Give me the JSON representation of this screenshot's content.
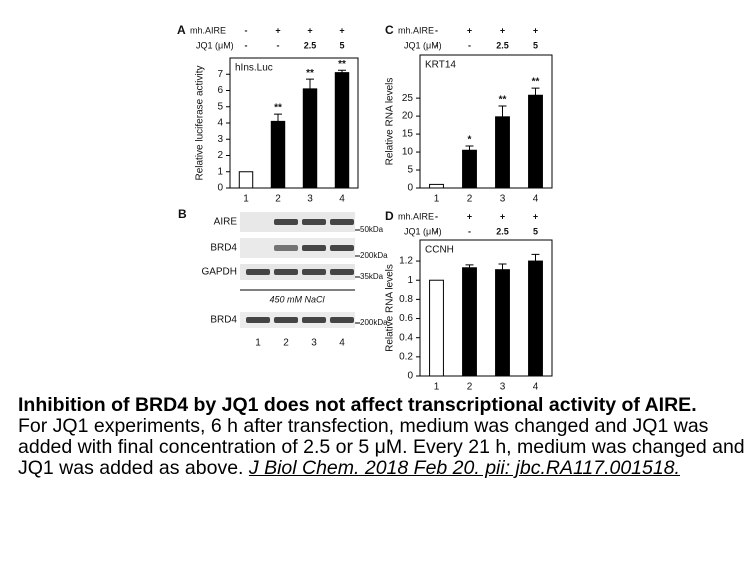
{
  "chart_data": [
    {
      "type": "bar",
      "panel": "A",
      "title": "hIns.Luc",
      "ylabel": "Relative luciferase activity",
      "conditions": [
        {
          "label": "mh.AIRE",
          "values": [
            "-",
            "+",
            "+",
            "+"
          ]
        },
        {
          "label": "JQ1 (μM)",
          "values": [
            "-",
            "-",
            "2.5",
            "5"
          ]
        }
      ],
      "categories": [
        "1",
        "2",
        "3",
        "4"
      ],
      "values": [
        1,
        4.1,
        6.1,
        7.1
      ],
      "errors": [
        null,
        0.45,
        0.6,
        0.15
      ],
      "significance": [
        null,
        "**",
        "**",
        "**"
      ],
      "colors": [
        "#ffffff",
        "#000000",
        "#000000",
        "#000000"
      ],
      "ylim": [
        0,
        8
      ],
      "yticks": [
        0,
        1,
        2,
        3,
        4,
        5,
        6,
        7
      ]
    },
    {
      "type": "bar",
      "panel": "C",
      "title": "KRT14",
      "ylabel": "Relative RNA levels",
      "conditions": [
        {
          "label": "mh.AIRE",
          "values": [
            "-",
            "+",
            "+",
            "+"
          ]
        },
        {
          "label": "JQ1 (μM)",
          "values": [
            "-",
            "-",
            "2.5",
            "5"
          ]
        }
      ],
      "categories": [
        "1",
        "2",
        "3",
        "4"
      ],
      "values": [
        1,
        10.5,
        19.8,
        25.8
      ],
      "errors": [
        null,
        1.2,
        3,
        2
      ],
      "significance": [
        null,
        "*",
        "**",
        "**"
      ],
      "colors": [
        "#ffffff",
        "#000000",
        "#000000",
        "#000000"
      ],
      "ylim": [
        0,
        37
      ],
      "yticks": [
        0,
        5,
        10,
        15,
        20,
        25
      ]
    },
    {
      "type": "bar",
      "panel": "D",
      "title": "CCNH",
      "ylabel": "Relative RNA levels",
      "conditions": [
        {
          "label": "mh.AIRE",
          "values": [
            "-",
            "+",
            "+",
            "+"
          ]
        },
        {
          "label": "JQ1 (μM)",
          "values": [
            "-",
            "-",
            "2.5",
            "5"
          ]
        }
      ],
      "categories": [
        "1",
        "2",
        "3",
        "4"
      ],
      "values": [
        1,
        1.13,
        1.11,
        1.2
      ],
      "errors": [
        null,
        0.03,
        0.06,
        0.07
      ],
      "significance": [
        null,
        null,
        null,
        null
      ],
      "colors": [
        "#ffffff",
        "#000000",
        "#000000",
        "#000000"
      ],
      "ylim": [
        0,
        1.42
      ],
      "yticks": [
        0,
        0.2,
        0.4,
        0.6,
        0.8,
        1,
        1.2
      ]
    }
  ],
  "blot": {
    "panel": "B",
    "rows": [
      "AIRE",
      "BRD4",
      "GAPDH"
    ],
    "markers": [
      "50kDa",
      "200kDa",
      "35kDa"
    ],
    "condition": "450 mM NaCl",
    "extract_row": "BRD4",
    "extract_marker": "200kDa",
    "lanes": [
      "1",
      "2",
      "3",
      "4"
    ]
  },
  "caption": {
    "title": "Inhibition of BRD4 by JQ1 does not affect transcriptional activity of AIRE.",
    "body": "For JQ1 experiments, 6 h after transfection, medium was changed and JQ1 was added with final concentration of 2.5 or 5 μM. Every 21 h, medium was changed and JQ1 was added as above.",
    "citation": "J Biol Chem. 2018 Feb 20. pii: jbc.RA117.001518."
  }
}
